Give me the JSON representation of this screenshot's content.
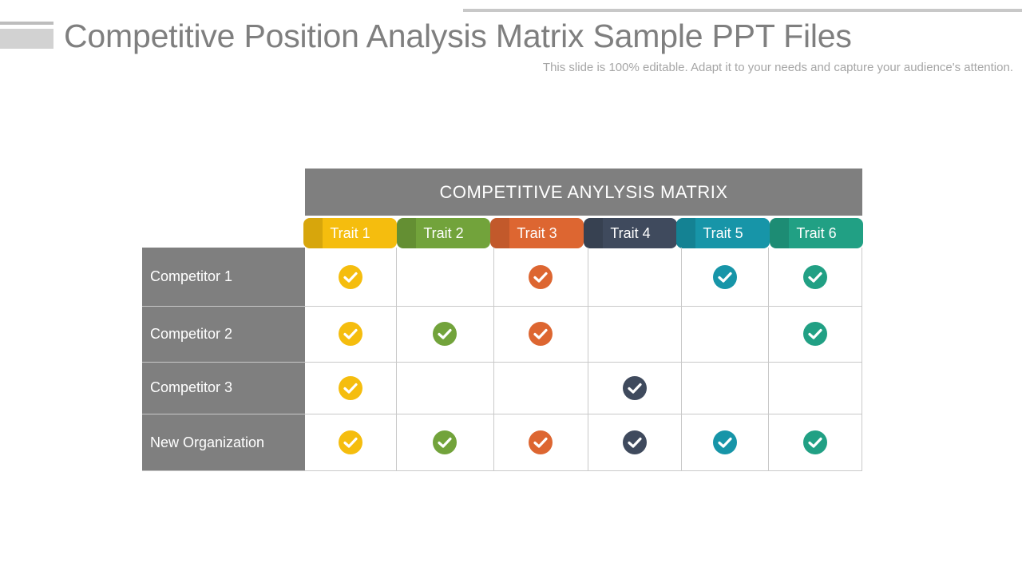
{
  "slide": {
    "title": "Competitive Position Analysis Matrix Sample PPT Files",
    "subtitle": "This slide is 100% editable. Adapt it to your needs and capture your audience's attention."
  },
  "matrix": {
    "header": "COMPETITIVE ANYLYSIS MATRIX",
    "traits": [
      {
        "label": "Trait 1",
        "color": "#f5bd0e"
      },
      {
        "label": "Trait 2",
        "color": "#72a33b"
      },
      {
        "label": "Trait 3",
        "color": "#dd6631"
      },
      {
        "label": "Trait 4",
        "color": "#3f4a5d"
      },
      {
        "label": "Trait 5",
        "color": "#1795a8"
      },
      {
        "label": "Trait 6",
        "color": "#21a084"
      }
    ],
    "rows": [
      {
        "label": "Competitor 1",
        "checks": [
          true,
          false,
          true,
          false,
          true,
          true
        ]
      },
      {
        "label": "Competitor 2",
        "checks": [
          true,
          true,
          true,
          false,
          false,
          true
        ]
      },
      {
        "label": "Competitor 3",
        "checks": [
          true,
          false,
          false,
          true,
          false,
          false
        ]
      },
      {
        "label": "New Organization",
        "checks": [
          true,
          true,
          true,
          true,
          true,
          true
        ]
      }
    ],
    "check_icon": "check-circle-icon"
  }
}
